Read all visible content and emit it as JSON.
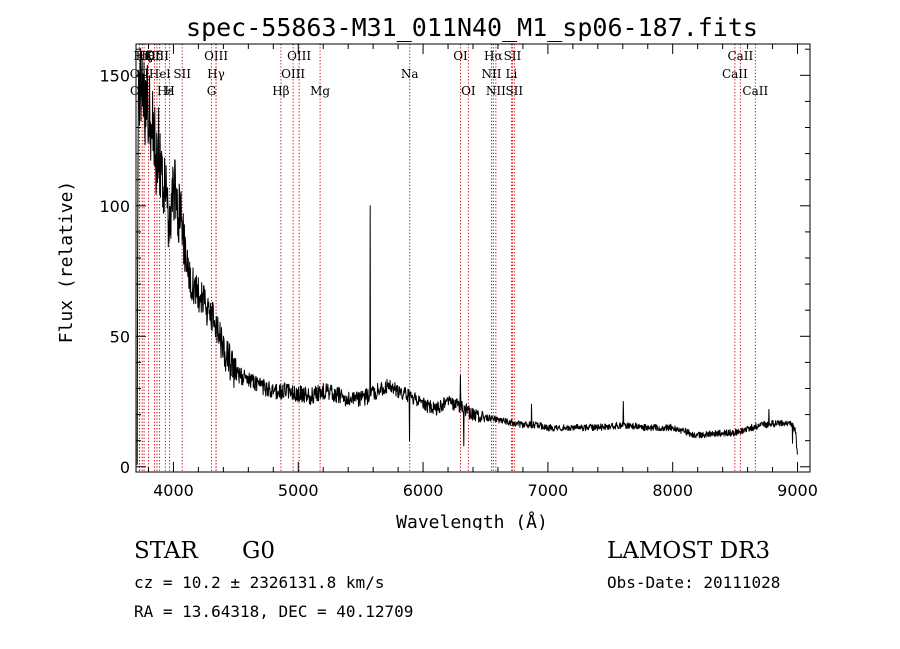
{
  "chart_data": {
    "type": "line",
    "title": "spec-55863-M31_011N40_M1_sp06-187.fits",
    "xlabel": "Wavelength (Å)",
    "ylabel": "Flux (relative)",
    "xlim": [
      3700,
      9100
    ],
    "ylim": [
      -2,
      162
    ],
    "x_ticks": [
      4000,
      5000,
      6000,
      7000,
      8000,
      9000
    ],
    "y_ticks": [
      0,
      50,
      100,
      150
    ],
    "grid": false,
    "colors": {
      "spectrum": "#000000",
      "lines": "#cc0000",
      "axes": "#000000"
    },
    "spectrum_anchors": [
      [
        3710,
        3
      ],
      [
        3715,
        130
      ],
      [
        3725,
        140
      ],
      [
        3740,
        150
      ],
      [
        3760,
        145
      ],
      [
        3780,
        135
      ],
      [
        3800,
        140
      ],
      [
        3820,
        128
      ],
      [
        3840,
        133
      ],
      [
        3860,
        118
      ],
      [
        3880,
        125
      ],
      [
        3900,
        110
      ],
      [
        3920,
        105
      ],
      [
        3940,
        112
      ],
      [
        3960,
        92
      ],
      [
        3980,
        98
      ],
      [
        4000,
        108
      ],
      [
        4020,
        104
      ],
      [
        4040,
        96
      ],
      [
        4060,
        100
      ],
      [
        4080,
        88
      ],
      [
        4100,
        80
      ],
      [
        4120,
        74
      ],
      [
        4150,
        70
      ],
      [
        4200,
        66
      ],
      [
        4250,
        62
      ],
      [
        4300,
        58
      ],
      [
        4350,
        53
      ],
      [
        4400,
        45
      ],
      [
        4450,
        40
      ],
      [
        4500,
        36
      ],
      [
        4600,
        33
      ],
      [
        4700,
        31
      ],
      [
        4800,
        29
      ],
      [
        4900,
        29
      ],
      [
        5000,
        28
      ],
      [
        5100,
        27
      ],
      [
        5200,
        29
      ],
      [
        5300,
        28
      ],
      [
        5400,
        26
      ],
      [
        5500,
        26
      ],
      [
        5600,
        28
      ],
      [
        5700,
        31
      ],
      [
        5800,
        29
      ],
      [
        5900,
        27
      ],
      [
        6000,
        24
      ],
      [
        6100,
        22
      ],
      [
        6200,
        25
      ],
      [
        6300,
        23
      ],
      [
        6400,
        20
      ],
      [
        6500,
        19
      ],
      [
        6600,
        18
      ],
      [
        6700,
        17
      ],
      [
        6800,
        16
      ],
      [
        6900,
        16
      ],
      [
        7000,
        15
      ],
      [
        7200,
        15
      ],
      [
        7400,
        15
      ],
      [
        7600,
        16
      ],
      [
        7800,
        15
      ],
      [
        8000,
        15
      ],
      [
        8200,
        12
      ],
      [
        8400,
        13
      ],
      [
        8500,
        13
      ],
      [
        8700,
        16
      ],
      [
        8900,
        17
      ],
      [
        8950,
        16
      ],
      [
        8985,
        14
      ],
      [
        9000,
        3
      ]
    ],
    "spectrum_features": [
      {
        "x": 5577,
        "y": 100
      },
      {
        "x": 5890,
        "y": 10
      },
      {
        "x": 6300,
        "y": 35
      },
      {
        "x": 6325,
        "y": 8
      },
      {
        "x": 6870,
        "y": 24
      },
      {
        "x": 7605,
        "y": 25
      },
      {
        "x": 8770,
        "y": 22
      },
      {
        "x": 8960,
        "y": 9
      }
    ],
    "lines": [
      {
        "label": "Hη",
        "x": 3750,
        "row": 0
      },
      {
        "label": "Hζ",
        "x": 3765,
        "row": 0
      },
      {
        "label": "K",
        "x": 3800,
        "row": 0
      },
      {
        "label": "Hδ",
        "x": 3848,
        "row": 0
      },
      {
        "label": "OIII",
        "x": 3868,
        "row": 0
      },
      {
        "label": "OIII",
        "x": 4342,
        "row": 0
      },
      {
        "label": "OIII",
        "x": 5007,
        "row": 0
      },
      {
        "label": "OI",
        "x": 6300,
        "row": 0
      },
      {
        "label": "Hα",
        "x": 6563,
        "row": 0
      },
      {
        "label": "SII",
        "x": 6716,
        "row": 0
      },
      {
        "label": "CaII",
        "x": 8542,
        "row": 0
      },
      {
        "label": "OII",
        "x": 3727,
        "row": 1
      },
      {
        "label": "Hel",
        "x": 3889,
        "row": 1
      },
      {
        "label": "SII",
        "x": 4070,
        "row": 1
      },
      {
        "label": "Hγ",
        "x": 4341,
        "row": 1
      },
      {
        "label": "OIII",
        "x": 4959,
        "row": 1
      },
      {
        "label": "Na",
        "x": 5893,
        "row": 1
      },
      {
        "label": "NII",
        "x": 6548,
        "row": 1
      },
      {
        "label": "Li",
        "x": 6708,
        "row": 1
      },
      {
        "label": "CaII",
        "x": 8498,
        "row": 1
      },
      {
        "label": "OII",
        "x": 3729,
        "row": 2
      },
      {
        "label": "Hε",
        "x": 3935,
        "row": 2
      },
      {
        "label": "H",
        "x": 3969,
        "row": 2
      },
      {
        "label": "G",
        "x": 4305,
        "row": 2
      },
      {
        "label": "Hβ",
        "x": 4861,
        "row": 2
      },
      {
        "label": "Mg",
        "x": 5175,
        "row": 2
      },
      {
        "label": "OI",
        "x": 6363,
        "row": 2
      },
      {
        "label": "NII",
        "x": 6583,
        "row": 2
      },
      {
        "label": "SII",
        "x": 6731,
        "row": 2
      },
      {
        "label": "CaII",
        "x": 8662,
        "row": 2
      }
    ]
  },
  "info": {
    "object_type": "STAR",
    "subclass": "G0",
    "survey": "LAMOST DR3",
    "redshift_line": "cz = 10.2 ± 2326131.8 km/s",
    "obs_date_line": "Obs-Date: 20111028",
    "coords_line": "RA =  13.64318, DEC =  40.12709"
  }
}
